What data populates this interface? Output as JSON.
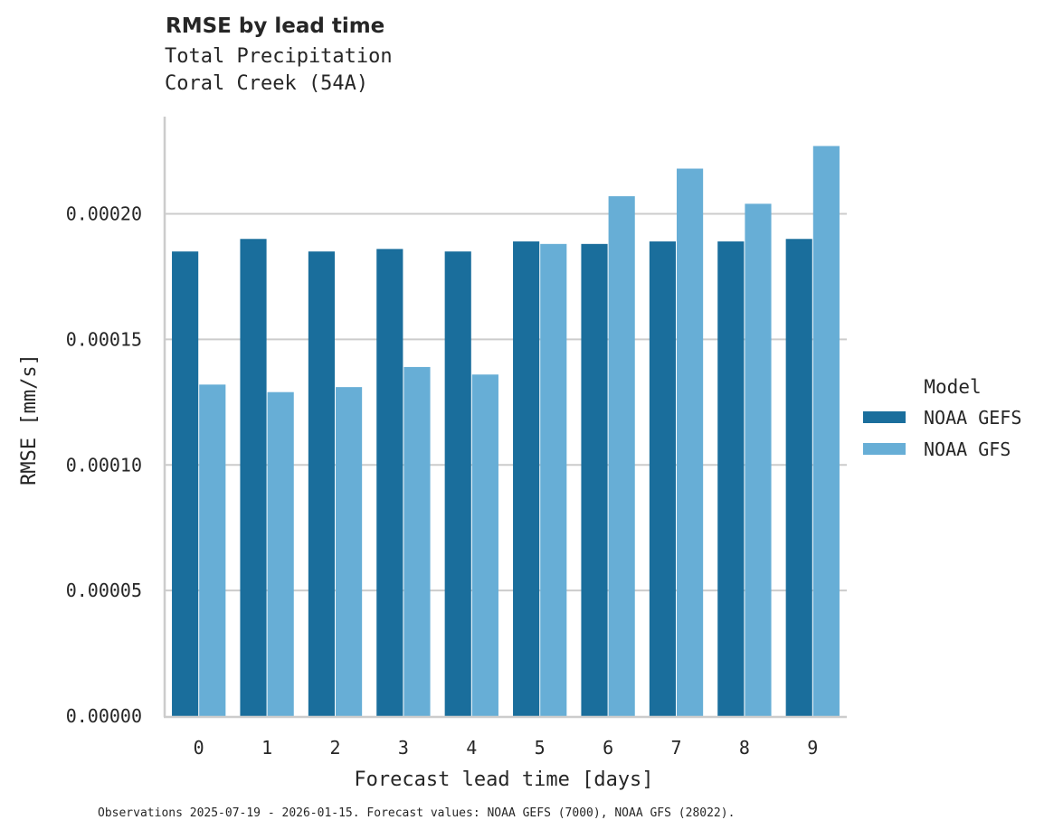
{
  "header": {
    "title": "RMSE by lead time",
    "subtitle_line1": "Total Precipitation",
    "subtitle_line2": "Coral Creek (54A)"
  },
  "footer": {
    "note": "Observations 2025-07-19 - 2026-01-15. Forecast values: NOAA GEFS (7000), NOAA GFS (28022)."
  },
  "legend": {
    "title": "Model",
    "items": [
      {
        "label": "NOAA GEFS",
        "color": "#1a6e9c"
      },
      {
        "label": "NOAA GFS",
        "color": "#67aed6"
      }
    ]
  },
  "chart_data": {
    "type": "bar",
    "title": "RMSE by lead time",
    "subtitle": "Total Precipitation / Coral Creek (54A)",
    "xlabel": "Forecast lead time [days]",
    "ylabel": "RMSE [mm/s]",
    "categories": [
      "0",
      "1",
      "2",
      "3",
      "4",
      "5",
      "6",
      "7",
      "8",
      "9"
    ],
    "series": [
      {
        "name": "NOAA GEFS",
        "color": "#1a6e9c",
        "values": [
          0.000185,
          0.00019,
          0.000185,
          0.000186,
          0.000185,
          0.000189,
          0.000188,
          0.000189,
          0.000189,
          0.00019
        ]
      },
      {
        "name": "NOAA GFS",
        "color": "#67aed6",
        "values": [
          0.000132,
          0.000129,
          0.000131,
          0.000139,
          0.000136,
          0.000188,
          0.000207,
          0.000218,
          0.000204,
          0.000227
        ]
      }
    ],
    "ylim": [
      0,
      0.000239
    ],
    "yticks": [
      "0.00000",
      "0.00005",
      "0.00010",
      "0.00015",
      "0.00020"
    ],
    "ytick_values": [
      0,
      5e-05,
      0.0001,
      0.00015,
      0.0002
    ],
    "grid": "horizontal",
    "legend_position": "right"
  }
}
